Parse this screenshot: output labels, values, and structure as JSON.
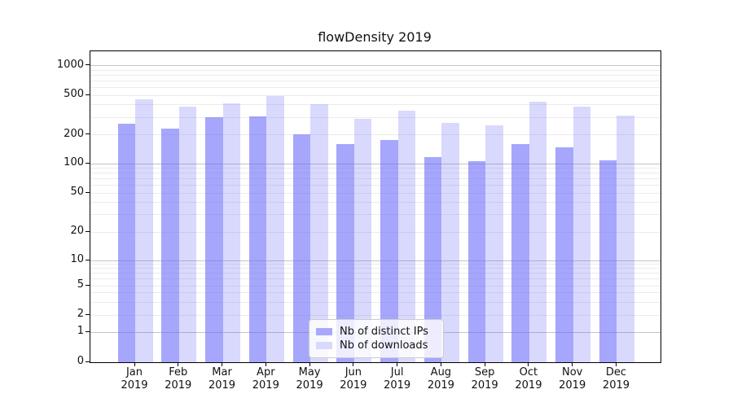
{
  "title": "flowDensity 2019",
  "colors": {
    "series_base": "#6666fa",
    "bar_ips_fill": "rgba(102,102,250,0.58)",
    "bar_downloads_fill": "rgba(102,102,250,0.25)",
    "legend_swatch_ips": "#a9a9fb",
    "legend_swatch_downloads": "#d9d9fb",
    "grid_major": "#c3c3c3",
    "grid_minor": "#ebebeb",
    "axis": "#000000"
  },
  "legend": {
    "items": [
      {
        "label": "Nb of distinct IPs",
        "swatch": "#a9a9fb"
      },
      {
        "label": "Nb of downloads",
        "swatch": "#d9d9fb"
      }
    ]
  },
  "chart_data": {
    "type": "bar",
    "title": "flowDensity 2019",
    "categories": [
      "Jan 2019",
      "Feb 2019",
      "Mar 2019",
      "Apr 2019",
      "May 2019",
      "Jun 2019",
      "Jul 2019",
      "Aug 2019",
      "Sep 2019",
      "Oct 2019",
      "Nov 2019",
      "Dec 2019"
    ],
    "series": [
      {
        "name": "Nb of distinct IPs",
        "color": "#a9a9fb",
        "values": [
          257,
          229,
          298,
          307,
          203,
          160,
          175,
          117,
          106,
          159,
          147,
          108
        ]
      },
      {
        "name": "Nb of downloads",
        "color": "#d9d9fb",
        "values": [
          459,
          383,
          416,
          494,
          410,
          288,
          352,
          262,
          249,
          434,
          385,
          312
        ]
      }
    ],
    "xlabel": "",
    "ylabel": "",
    "yscale": "log-like (compressed below 10, 0 at baseline)",
    "yticks": [
      0,
      1,
      2,
      5,
      10,
      20,
      50,
      100,
      200,
      500,
      1000
    ],
    "major_grid_values": [
      1,
      10,
      100,
      1000
    ],
    "minor_grid_subs": [
      2,
      3,
      4,
      5,
      6,
      7,
      8,
      9
    ],
    "ylim": [
      0,
      1400
    ],
    "grid": "horizontal major+minor",
    "legend_position": "lower center"
  }
}
